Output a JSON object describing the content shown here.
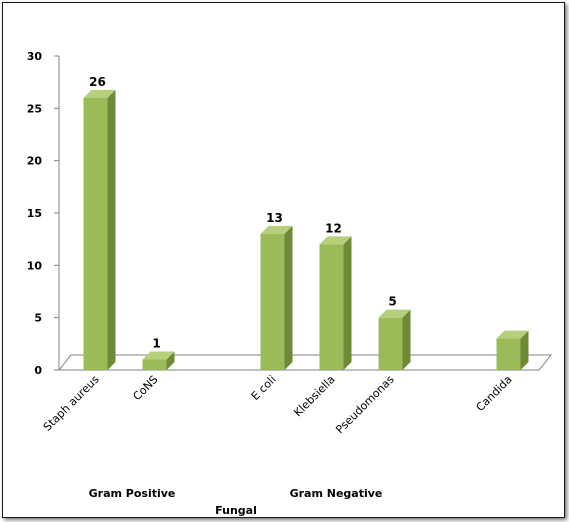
{
  "chart_data": {
    "type": "bar",
    "categories": [
      "Staph aureus",
      "CoNS",
      "",
      "E coli",
      "Klebsiella",
      "Pseudomonas",
      "",
      "Candida"
    ],
    "values": [
      26,
      1,
      null,
      13,
      12,
      5,
      null,
      3
    ],
    "data_labels": [
      "26",
      "1",
      "",
      "13",
      "12",
      "5",
      "",
      ""
    ],
    "ylim": [
      0,
      30
    ],
    "yticks": [
      0,
      5,
      10,
      15,
      20,
      25,
      30
    ],
    "group_labels": [
      "Gram Positive",
      "Gram Negative",
      "Fungal"
    ],
    "bar_color": "#9bbb59",
    "bar_side_color": "#6e8a36",
    "bar_top_color": "#b5cf7a",
    "grid": false,
    "legend": "none"
  }
}
